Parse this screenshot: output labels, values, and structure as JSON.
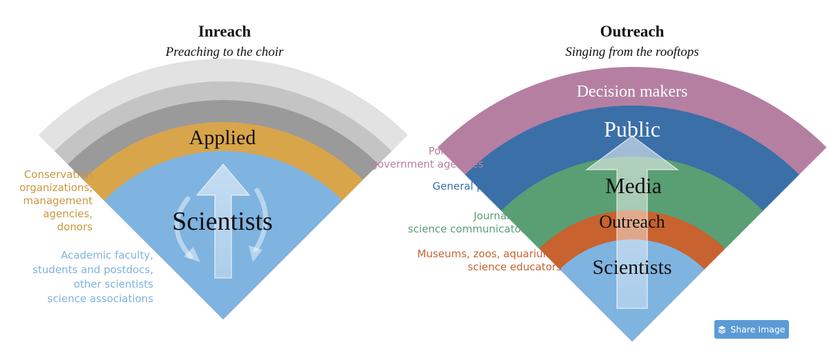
{
  "inreach": {
    "title": "Inreach",
    "subtitle": "Preaching to the choir",
    "bands": {
      "applied": "Applied",
      "scientists": "Scientists"
    },
    "side_labels": {
      "applied_audience": [
        "Conservation",
        "organizations,",
        "management",
        "agencies,",
        "donors"
      ],
      "scientists_audience": [
        "Academic faculty,",
        "students and postdocs,",
        "other scientists",
        "science associations"
      ]
    }
  },
  "outreach": {
    "title": "Outreach",
    "subtitle": "Singing from the rooftops",
    "bands": {
      "decision_makers": "Decision makers",
      "public": "Public",
      "media": "Media",
      "outreach": "Outreach",
      "scientists": "Scientists"
    },
    "side_labels": {
      "decision_makers_audience": [
        "Politicians,",
        "government agencies"
      ],
      "public_audience": [
        "General public"
      ],
      "media_audience": [
        "Journalists,",
        "science communicators"
      ],
      "outreach_audience": [
        "Museums, zoos, aquariums,",
        "science educators"
      ]
    }
  },
  "share_button": {
    "label": "Share Image",
    "icon": "layers-icon"
  },
  "colors": {
    "scientists": "#7fb3e0",
    "applied": "#d9a54a",
    "gray_dark": "#9a9a9a",
    "gray_mid": "#c4c4c4",
    "gray_light": "#e2e2e2",
    "outreach_band": "#c8622e",
    "media": "#5a9e74",
    "public": "#3a6fa8",
    "decision_makers": "#b57fa2",
    "label_applied": "#c9973e",
    "label_scientists": "#7fb3e0",
    "label_politicians": "#b57fa2",
    "label_public": "#3a6fa8",
    "label_media": "#5a9e74",
    "label_outreach": "#c8622e",
    "share_button": "#5b9bd5"
  }
}
